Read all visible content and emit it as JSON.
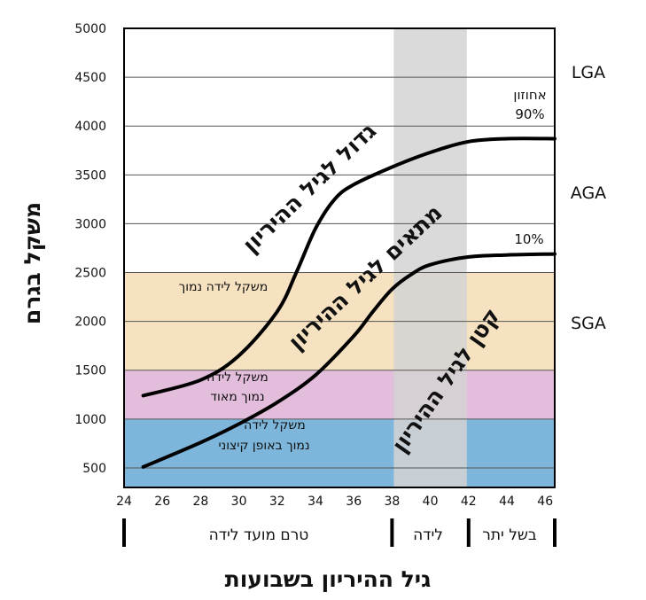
{
  "chart_data": {
    "type": "line",
    "xlabel": "גיל ההיריון בשבועות",
    "ylabel": "משקל בגרם",
    "xlim": [
      24,
      46.5
    ],
    "ylim": [
      300,
      5000
    ],
    "xticks": [
      24,
      26,
      28,
      30,
      32,
      34,
      36,
      38,
      40,
      42,
      44,
      46
    ],
    "yticks": [
      500,
      1000,
      1500,
      2000,
      2500,
      3000,
      3500,
      4000,
      4500,
      5000
    ],
    "grid": true,
    "series": [
      {
        "name": "אחוזון 90%",
        "color": "#000000",
        "points": [
          [
            25,
            1240
          ],
          [
            28,
            1400
          ],
          [
            30,
            1650
          ],
          [
            32,
            2100
          ],
          [
            33,
            2500
          ],
          [
            34,
            2950
          ],
          [
            35,
            3250
          ],
          [
            36,
            3400
          ],
          [
            38,
            3580
          ],
          [
            40,
            3730
          ],
          [
            42,
            3840
          ],
          [
            44,
            3870
          ],
          [
            46.5,
            3870
          ]
        ]
      },
      {
        "name": "10%",
        "color": "#000000",
        "points": [
          [
            25,
            510
          ],
          [
            28,
            760
          ],
          [
            30,
            950
          ],
          [
            32,
            1170
          ],
          [
            34,
            1450
          ],
          [
            36,
            1850
          ],
          [
            37,
            2100
          ],
          [
            38,
            2330
          ],
          [
            39,
            2480
          ],
          [
            40,
            2580
          ],
          [
            42,
            2660
          ],
          [
            44,
            2680
          ],
          [
            46.5,
            2690
          ]
        ]
      }
    ],
    "bands": [
      {
        "from": 300,
        "to": 1000,
        "color": "#7db6da",
        "label_lines": [
          "משקל לידה",
          "נמוך באופן קיצוני"
        ]
      },
      {
        "from": 1000,
        "to": 1500,
        "color": "#e3bedc",
        "label_lines": [
          "משקל לידה",
          "נמוך מאוד"
        ]
      },
      {
        "from": 1500,
        "to": 2500,
        "color": "#f6e2c0",
        "label_lines": [
          "משקל לידה נמוך"
        ]
      }
    ],
    "term_zone": {
      "from": 38,
      "to": 42,
      "color": "#d3d3d3"
    },
    "side_labels": [
      "LGA",
      "AGA",
      "SGA"
    ],
    "curve_labels": [
      "גדול לגיל ההיריון",
      "מתאים לגיל ההיריון",
      "קטן לגיל ההיריון"
    ],
    "percentile_labels": [
      "אחוזון",
      "90%",
      "10%"
    ],
    "phases": [
      "טרם מועד לידה",
      "לידה",
      "בשל יתר"
    ]
  }
}
